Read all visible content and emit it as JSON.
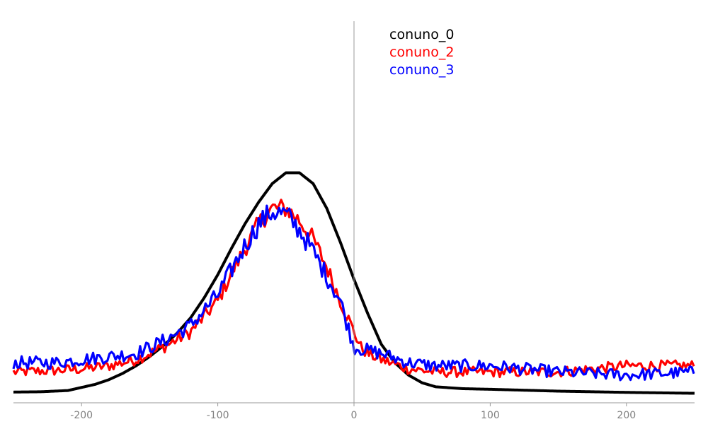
{
  "chart_data": {
    "type": "line",
    "title": "",
    "xlabel": "",
    "ylabel": "",
    "xlim": [
      -250,
      250
    ],
    "ylim": [
      0,
      1
    ],
    "grid": false,
    "legend_position": "top-center",
    "x_ticks": [
      -200,
      -100,
      0,
      100,
      200
    ],
    "x_tick_labels": [
      "-200",
      "-100",
      "0",
      "100",
      "200"
    ],
    "series": [
      {
        "name": "conuno_0",
        "color": "#000000",
        "noise": 0.0,
        "points": [
          [
            -250,
            0.005
          ],
          [
            -230,
            0.006
          ],
          [
            -210,
            0.01
          ],
          [
            -200,
            0.02
          ],
          [
            -190,
            0.03
          ],
          [
            -180,
            0.045
          ],
          [
            -170,
            0.065
          ],
          [
            -160,
            0.09
          ],
          [
            -150,
            0.12
          ],
          [
            -140,
            0.155
          ],
          [
            -130,
            0.195
          ],
          [
            -120,
            0.245
          ],
          [
            -110,
            0.31
          ],
          [
            -100,
            0.385
          ],
          [
            -90,
            0.47
          ],
          [
            -80,
            0.55
          ],
          [
            -70,
            0.62
          ],
          [
            -60,
            0.68
          ],
          [
            -50,
            0.715
          ],
          [
            -40,
            0.715
          ],
          [
            -30,
            0.68
          ],
          [
            -20,
            0.6
          ],
          [
            -10,
            0.49
          ],
          [
            0,
            0.37
          ],
          [
            10,
            0.26
          ],
          [
            20,
            0.16
          ],
          [
            30,
            0.1
          ],
          [
            40,
            0.06
          ],
          [
            50,
            0.035
          ],
          [
            60,
            0.022
          ],
          [
            80,
            0.016
          ],
          [
            100,
            0.014
          ],
          [
            150,
            0.008
          ],
          [
            200,
            0.004
          ],
          [
            250,
            0.001
          ]
        ]
      },
      {
        "name": "conuno_2",
        "color": "#ff0000",
        "noise": 0.03,
        "points": [
          [
            -250,
            0.07
          ],
          [
            -220,
            0.075
          ],
          [
            -200,
            0.08
          ],
          [
            -180,
            0.09
          ],
          [
            -160,
            0.11
          ],
          [
            -140,
            0.15
          ],
          [
            -120,
            0.2
          ],
          [
            -100,
            0.3
          ],
          [
            -90,
            0.39
          ],
          [
            -80,
            0.47
          ],
          [
            -70,
            0.55
          ],
          [
            -60,
            0.6
          ],
          [
            -50,
            0.6
          ],
          [
            -40,
            0.56
          ],
          [
            -30,
            0.5
          ],
          [
            -20,
            0.41
          ],
          [
            -10,
            0.3
          ],
          [
            0,
            0.2
          ],
          [
            5,
            0.15
          ],
          [
            10,
            0.13
          ],
          [
            20,
            0.11
          ],
          [
            40,
            0.08
          ],
          [
            60,
            0.07
          ],
          [
            100,
            0.07
          ],
          [
            150,
            0.07
          ],
          [
            200,
            0.09
          ],
          [
            250,
            0.09
          ]
        ]
      },
      {
        "name": "conuno_3",
        "color": "#0000ff",
        "noise": 0.035,
        "points": [
          [
            -250,
            0.1
          ],
          [
            -220,
            0.1
          ],
          [
            -200,
            0.11
          ],
          [
            -180,
            0.12
          ],
          [
            -160,
            0.13
          ],
          [
            -140,
            0.17
          ],
          [
            -120,
            0.22
          ],
          [
            -100,
            0.32
          ],
          [
            -90,
            0.4
          ],
          [
            -80,
            0.48
          ],
          [
            -70,
            0.55
          ],
          [
            -60,
            0.59
          ],
          [
            -50,
            0.58
          ],
          [
            -40,
            0.53
          ],
          [
            -30,
            0.46
          ],
          [
            -20,
            0.38
          ],
          [
            -10,
            0.3
          ],
          [
            0,
            0.15
          ],
          [
            10,
            0.14
          ],
          [
            20,
            0.13
          ],
          [
            40,
            0.1
          ],
          [
            60,
            0.09
          ],
          [
            100,
            0.09
          ],
          [
            150,
            0.07
          ],
          [
            200,
            0.06
          ],
          [
            250,
            0.07
          ]
        ]
      }
    ]
  }
}
